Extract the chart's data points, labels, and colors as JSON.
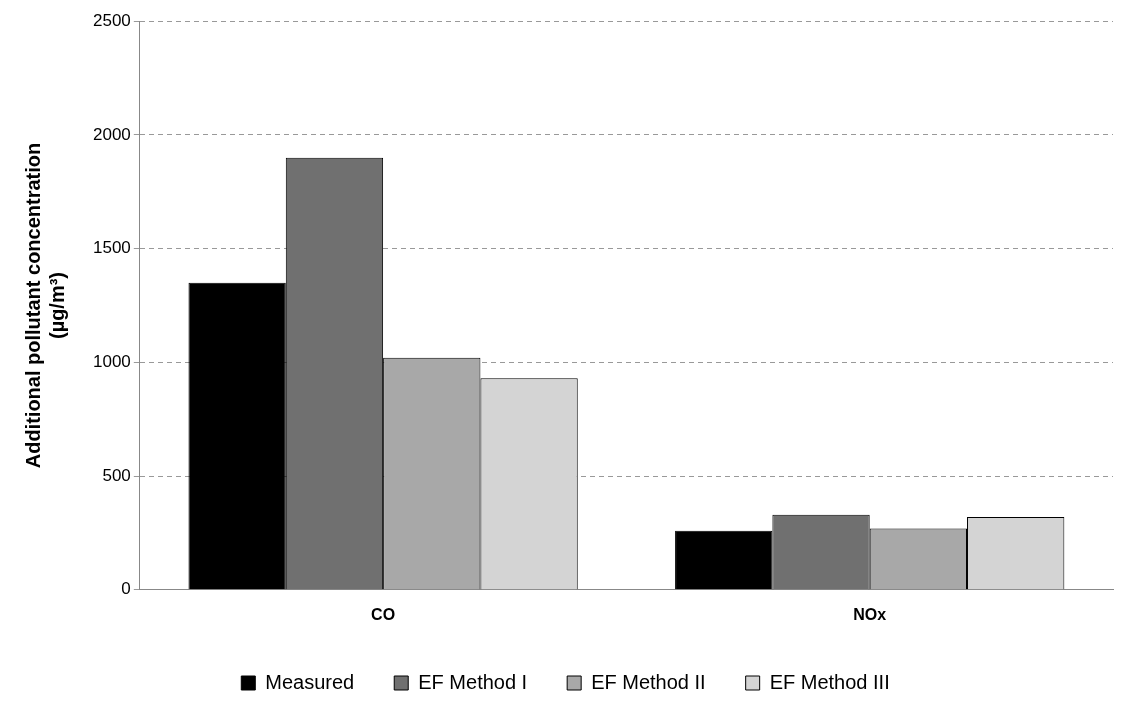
{
  "chart_data": {
    "type": "bar",
    "ylabel": "Additional pollutant concentration\n(µg/m³)",
    "categories": [
      "CO",
      "NOx"
    ],
    "series": [
      {
        "name": "Measured",
        "color": "#000000",
        "values": [
          1350,
          260
        ]
      },
      {
        "name": "EF Method I",
        "color": "#707070",
        "values": [
          1900,
          330
        ]
      },
      {
        "name": "EF Method II",
        "color": "#a8a8a8",
        "values": [
          1020,
          270
        ]
      },
      {
        "name": "EF Method III",
        "color": "#d4d4d4",
        "values": [
          930,
          320
        ]
      }
    ],
    "ylim": [
      0,
      2500
    ],
    "yticks": [
      0,
      500,
      1000,
      1500,
      2000,
      2500
    ],
    "grid": "y",
    "legend": "bottom"
  }
}
